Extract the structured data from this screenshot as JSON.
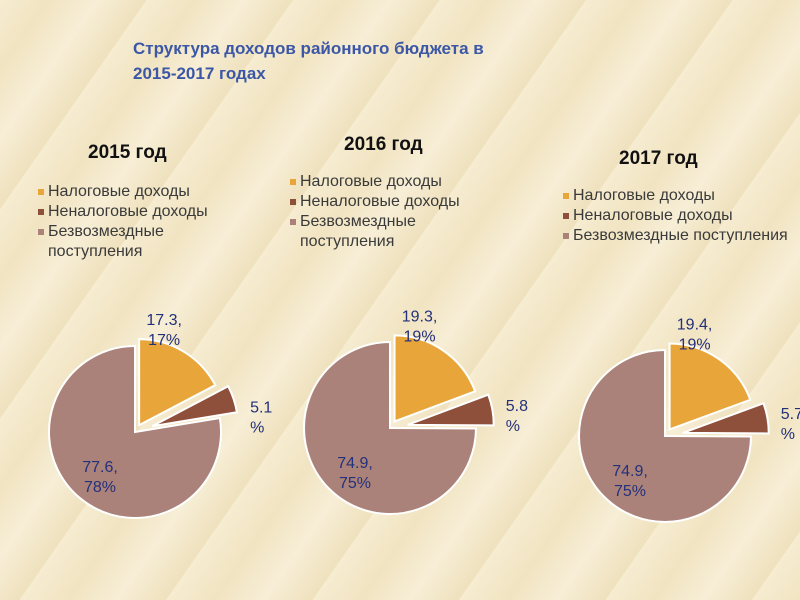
{
  "title_line1": "Структура доходов районного бюджета в",
  "title_line2": "2015-2017 годах",
  "colors": {
    "tax": "#e8a63a",
    "nontax": "#8e4f3b",
    "grants": "#aa827a",
    "label": "#23307a"
  },
  "chart_data": [
    {
      "type": "pie",
      "title": "2015 год",
      "legend": [
        "Налоговые доходы",
        "Неналоговые доходы",
        "Безвозмездные поступления"
      ],
      "slices": [
        {
          "label_value": "17.3,",
          "label_pct": "17%",
          "value": 17.3
        },
        {
          "label_value": "5.1",
          "label_pct": "%",
          "value": 5.1
        },
        {
          "label_value": "77.6,",
          "label_pct": "78%",
          "value": 77.6
        }
      ]
    },
    {
      "type": "pie",
      "title": "2016 год",
      "legend": [
        "Налоговые доходы",
        "Неналоговые доходы",
        "Безвозмездные поступления"
      ],
      "slices": [
        {
          "label_value": "19.3,",
          "label_pct": "19%",
          "value": 19.3
        },
        {
          "label_value": "5.8",
          "label_pct": "%",
          "value": 5.8
        },
        {
          "label_value": "74.9,",
          "label_pct": "75%",
          "value": 74.9
        }
      ]
    },
    {
      "type": "pie",
      "title": "2017 год",
      "legend": [
        "Налоговые доходы",
        "Неналоговые доходы",
        "Безвозмездные поступления"
      ],
      "slices": [
        {
          "label_value": "19.4,",
          "label_pct": "19%",
          "value": 19.4
        },
        {
          "label_value": "5.7",
          "label_pct": "%",
          "value": 5.7
        },
        {
          "label_value": "74.9,",
          "label_pct": "75%",
          "value": 74.9
        }
      ]
    }
  ]
}
